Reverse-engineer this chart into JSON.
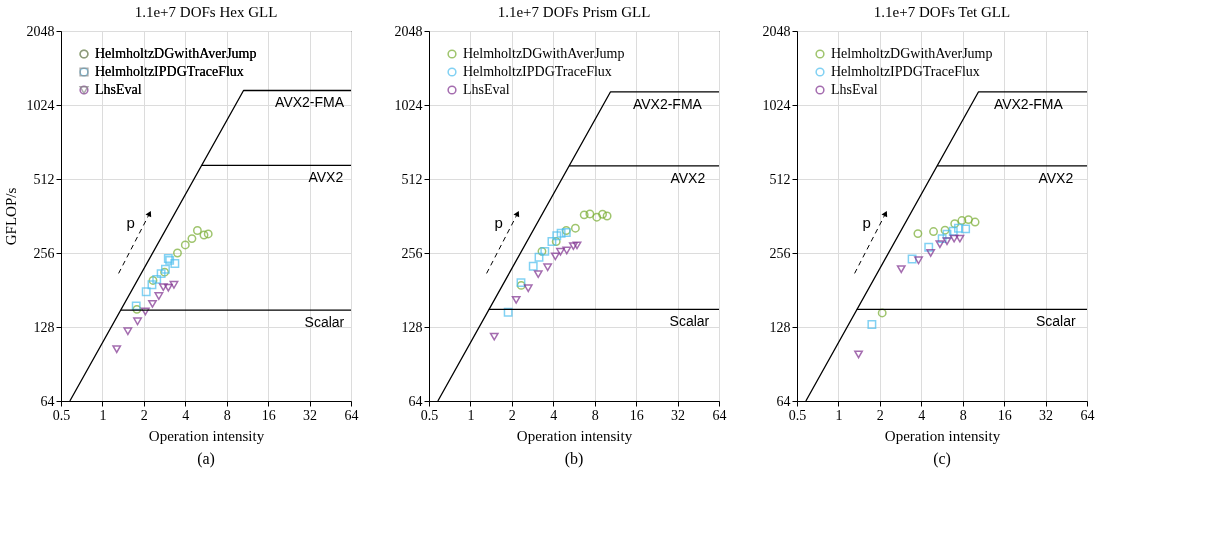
{
  "chart_data": [
    {
      "type": "scatter",
      "title": "1.1e+7 DOFs   Hex GLL",
      "xlabel": "Operation intensity",
      "ylabel": "GFLOP/s",
      "xlim": [
        0.5,
        64
      ],
      "ylim": [
        64,
        2048
      ],
      "log": "xy",
      "grid": true,
      "legend": "top left",
      "xticks": [
        0.5,
        1,
        2,
        4,
        8,
        16,
        32,
        64
      ],
      "yticks": [
        64,
        128,
        256,
        512,
        1024,
        2048
      ],
      "series": [
        {
          "name": "HelmholtzDGwithAverJump",
          "color": "#77ac30",
          "marker": "circle",
          "x": [
            1.78,
            2.33,
            2.83,
            3.51,
            4.0,
            4.47,
            4.9,
            5.47,
            5.87
          ],
          "values": [
            151,
            198,
            214,
            256,
            276,
            293,
            316,
            303,
            306
          ]
        },
        {
          "name": "HelmholtzIPDGTraceFlux",
          "color": "#4dbeee",
          "marker": "square",
          "x": [
            1.76,
            2.08,
            2.29,
            2.48,
            2.67,
            2.87,
            3.01,
            3.08,
            3.36
          ],
          "values": [
            156,
            178,
            190,
            200,
            211,
            220,
            243,
            239,
            232
          ]
        },
        {
          "name": "LhsEval",
          "color": "#7e2f8e",
          "marker": "triangle",
          "x": [
            1.27,
            1.53,
            1.8,
            2.05,
            2.31,
            2.57,
            2.77,
            3.01,
            3.31
          ],
          "values": [
            104,
            123,
            135,
            148,
            159,
            171,
            186,
            185,
            190
          ]
        },
        {
          "type": "line",
          "color": "#000000",
          "line_style": "solid",
          "x": [
            0.58,
            10.6,
            64
          ],
          "values": [
            64,
            1173,
            1173
          ]
        },
        {
          "type": "line",
          "color": "#000000",
          "line_style": "solid",
          "x": [
            5.27,
            64
          ],
          "values": [
            582,
            582
          ]
        },
        {
          "type": "line",
          "color": "#000000",
          "line_style": "solid",
          "x": [
            1.36,
            64
          ],
          "values": [
            150,
            150
          ]
        }
      ],
      "annotations": [
        "p",
        {
          "text": "AVX2-FMA",
          "x": 32,
          "y": 1173
        },
        {
          "text": "AVX2",
          "x": 42,
          "y": 582
        },
        {
          "text": "Scalar",
          "x": 41,
          "y": 150
        },
        "(a)"
      ]
    },
    {
      "type": "scatter",
      "title": "1.1e+7 DOFs   Prism GLL",
      "xlabel": "Operation intensity",
      "xlim": [
        0.5,
        64
      ],
      "ylim": [
        64,
        2048
      ],
      "log": "xy",
      "grid": true,
      "legend": "top left",
      "xticks": [
        0.5,
        1,
        2,
        4,
        8,
        16,
        32,
        64
      ],
      "yticks": [
        64,
        128,
        256,
        512,
        1024,
        2048
      ],
      "series": [
        {
          "name": "HelmholtzDGwithAverJump",
          "color": "#77ac30",
          "marker": "circle",
          "x": [
            2.34,
            3.31,
            4.2,
            4.97,
            5.79,
            6.71,
            7.38,
            8.28,
            9.12,
            9.84
          ],
          "values": [
            189,
            260,
            285,
            316,
            323,
            366,
            369,
            358,
            368,
            362
          ]
        },
        {
          "name": "HelmholtzIPDGTraceFlux",
          "color": "#4dbeee",
          "marker": "square",
          "x": [
            1.88,
            2.33,
            2.86,
            3.15,
            3.47,
            3.91,
            4.24,
            4.56,
            4.97
          ],
          "values": [
            147,
            194,
            226,
            246,
            260,
            285,
            301,
            308,
            310
          ]
        },
        {
          "name": "LhsEval",
          "color": "#7e2f8e",
          "marker": "triangle",
          "x": [
            1.49,
            2.15,
            2.63,
            3.11,
            3.64,
            4.14,
            4.51,
            5.01,
            5.6,
            5.95
          ],
          "values": [
            117,
            165,
            184,
            210,
            224,
            248,
            259,
            262,
            273,
            275
          ]
        },
        {
          "type": "line",
          "color": "#000000",
          "line_style": "solid",
          "x": [
            0.58,
            10.4,
            64
          ],
          "values": [
            64,
            1157,
            1157
          ]
        },
        {
          "type": "line",
          "color": "#000000",
          "line_style": "solid",
          "x": [
            5.22,
            64
          ],
          "values": [
            579,
            579
          ]
        },
        {
          "type": "line",
          "color": "#000000",
          "line_style": "solid",
          "x": [
            1.36,
            64
          ],
          "values": [
            151,
            151
          ]
        }
      ],
      "annotations": [
        "p",
        {
          "text": "AVX2-FMA",
          "x": 27,
          "y": 1157
        },
        {
          "text": "AVX2",
          "x": 38,
          "y": 579
        },
        {
          "text": "Scalar",
          "x": 39,
          "y": 151
        },
        "(b)"
      ]
    },
    {
      "type": "scatter",
      "title": "1.1e+7 DOFs   Tet GLL",
      "xlabel": "Operation intensity",
      "xlim": [
        0.5,
        64
      ],
      "ylim": [
        64,
        2048
      ],
      "log": "xy",
      "grid": true,
      "legend": "top left",
      "xticks": [
        0.5,
        1,
        2,
        4,
        8,
        16,
        32,
        64
      ],
      "yticks": [
        64,
        128,
        256,
        512,
        1024,
        2048
      ],
      "series": [
        {
          "name": "HelmholtzDGwithAverJump",
          "color": "#77ac30",
          "marker": "circle",
          "x": [
            2.08,
            3.78,
            4.91,
            5.95,
            7.0,
            7.89,
            8.81,
            9.84
          ],
          "values": [
            146,
            307,
            313,
            317,
            337,
            347,
            350,
            342
          ]
        },
        {
          "name": "HelmholtzIPDGTraceFlux",
          "color": "#4dbeee",
          "marker": "square",
          "x": [
            1.75,
            3.43,
            4.53,
            5.67,
            6.15,
            6.83,
            7.45,
            8.4
          ],
          "values": [
            131,
            242,
            270,
            293,
            305,
            314,
            323,
            321
          ]
        },
        {
          "name": "LhsEval",
          "color": "#7e2f8e",
          "marker": "triangle",
          "x": [
            1.4,
            2.86,
            3.82,
            4.68,
            5.46,
            6.15,
            6.93,
            7.63
          ],
          "values": [
            99,
            220,
            239,
            256,
            278,
            286,
            293,
            293
          ]
        },
        {
          "type": "line",
          "color": "#000000",
          "line_style": "solid",
          "x": [
            0.58,
            10.4,
            64
          ],
          "values": [
            64,
            1157,
            1157
          ]
        },
        {
          "type": "line",
          "color": "#000000",
          "line_style": "solid",
          "x": [
            5.22,
            64
          ],
          "values": [
            579,
            579
          ]
        },
        {
          "type": "line",
          "color": "#000000",
          "line_style": "solid",
          "x": [
            1.36,
            64
          ],
          "values": [
            151,
            151
          ]
        }
      ],
      "annotations": [
        "p",
        {
          "text": "AVX2-FMA",
          "x": 24,
          "y": 1157
        },
        {
          "text": "AVX2",
          "x": 38,
          "y": 579
        },
        {
          "text": "Scalar",
          "x": 38,
          "y": 151
        },
        "(c)"
      ]
    }
  ]
}
